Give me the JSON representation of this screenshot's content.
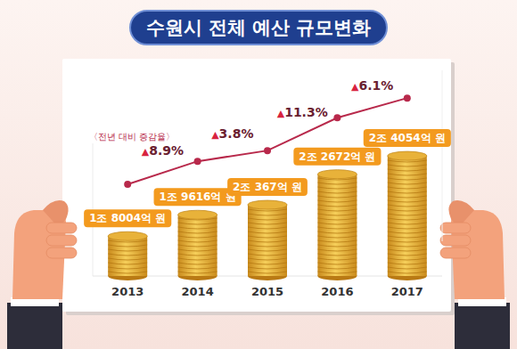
{
  "chart_data": {
    "type": "bar",
    "title": "수원시 전체 예산 규모변화",
    "categories": [
      "2013",
      "2014",
      "2015",
      "2016",
      "2017"
    ],
    "series": [
      {
        "type": "bar",
        "color": "#e8b23a",
        "values": [
          18004,
          19616,
          20367,
          22672,
          24054
        ],
        "value_labels": [
          "1조 8004억 원",
          "1조 9616억 원",
          "2조 367억 원",
          "2조 2672억 원",
          "2조 4054억 원"
        ]
      },
      {
        "type": "line",
        "axis": "y2",
        "color": "#b8294b",
        "marker": "circle",
        "values": [
          18004,
          19616,
          20367,
          22672,
          24054
        ]
      }
    ],
    "growth_rate": {
      "label": "〈전년 대비 증감율〉",
      "values": [
        null,
        8.9,
        3.8,
        11.3,
        6.1
      ],
      "value_labels": [
        null,
        "▲8.9%",
        "▲3.8%",
        "▲11.3%",
        "▲6.1%"
      ]
    },
    "ylim": [
      15000,
      25000
    ],
    "y2lim": [
      14000,
      26000
    ],
    "data_labels": true,
    "tick_labels": "x",
    "grid": false
  }
}
